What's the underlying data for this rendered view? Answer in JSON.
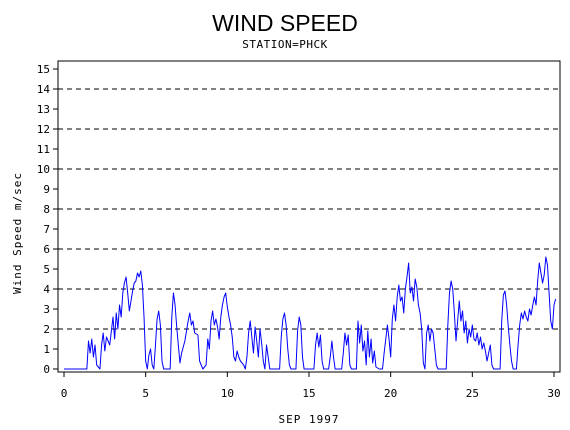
{
  "chart_data": {
    "type": "line",
    "title": "WIND SPEED",
    "subtitle": "STATION=PHCK",
    "xlabel": "SEP 1997",
    "ylabel": "Wind Speed m/sec",
    "xlim": [
      0,
      30
    ],
    "ylim": [
      0,
      15
    ],
    "x_ticks": [
      0,
      5,
      10,
      15,
      20,
      25,
      30
    ],
    "y_ticks": [
      0,
      1,
      2,
      3,
      4,
      5,
      6,
      7,
      8,
      9,
      10,
      11,
      12,
      13,
      14,
      15
    ],
    "reference_lines": [
      2,
      4,
      6,
      8,
      10,
      12,
      14
    ],
    "grid": "dashed horizontal reference lines",
    "series": [
      {
        "color": "#0000ff",
        "points": [
          [
            0.0,
            0.0
          ],
          [
            1.4,
            0.0
          ],
          [
            1.5,
            1.4
          ],
          [
            1.6,
            0.8
          ],
          [
            1.7,
            1.5
          ],
          [
            1.8,
            0.6
          ],
          [
            1.9,
            1.2
          ],
          [
            2.0,
            0.2
          ],
          [
            2.2,
            0.0
          ],
          [
            2.3,
            1.2
          ],
          [
            2.4,
            1.8
          ],
          [
            2.5,
            0.9
          ],
          [
            2.6,
            1.6
          ],
          [
            2.8,
            1.2
          ],
          [
            3.0,
            2.6
          ],
          [
            3.1,
            1.5
          ],
          [
            3.2,
            2.8
          ],
          [
            3.3,
            2.0
          ],
          [
            3.4,
            3.2
          ],
          [
            3.5,
            2.6
          ],
          [
            3.6,
            3.8
          ],
          [
            3.7,
            4.3
          ],
          [
            3.8,
            4.6
          ],
          [
            3.9,
            3.8
          ],
          [
            4.0,
            2.9
          ],
          [
            4.1,
            3.4
          ],
          [
            4.2,
            3.9
          ],
          [
            4.3,
            4.3
          ],
          [
            4.4,
            4.4
          ],
          [
            4.5,
            4.8
          ],
          [
            4.6,
            4.6
          ],
          [
            4.7,
            4.9
          ],
          [
            4.8,
            4.2
          ],
          [
            4.9,
            2.6
          ],
          [
            5.0,
            0.4
          ],
          [
            5.1,
            0.0
          ],
          [
            5.2,
            0.7
          ],
          [
            5.3,
            1.0
          ],
          [
            5.4,
            0.2
          ],
          [
            5.5,
            0.0
          ],
          [
            5.6,
            1.2
          ],
          [
            5.7,
            2.5
          ],
          [
            5.8,
            2.9
          ],
          [
            5.9,
            2.2
          ],
          [
            6.0,
            0.4
          ],
          [
            6.1,
            0.0
          ],
          [
            6.5,
            0.0
          ],
          [
            6.6,
            2.6
          ],
          [
            6.7,
            3.8
          ],
          [
            6.8,
            3.2
          ],
          [
            6.9,
            2.1
          ],
          [
            7.0,
            1.2
          ],
          [
            7.1,
            0.3
          ],
          [
            7.2,
            0.8
          ],
          [
            7.4,
            1.4
          ],
          [
            7.6,
            2.4
          ],
          [
            7.7,
            2.8
          ],
          [
            7.8,
            2.2
          ],
          [
            7.9,
            2.4
          ],
          [
            8.0,
            1.8
          ],
          [
            8.2,
            1.7
          ],
          [
            8.3,
            0.4
          ],
          [
            8.5,
            0.0
          ],
          [
            8.7,
            0.2
          ],
          [
            8.8,
            1.5
          ],
          [
            8.9,
            1.0
          ],
          [
            9.0,
            2.4
          ],
          [
            9.1,
            2.9
          ],
          [
            9.2,
            2.2
          ],
          [
            9.3,
            2.5
          ],
          [
            9.4,
            2.1
          ],
          [
            9.5,
            1.5
          ],
          [
            9.6,
            2.6
          ],
          [
            9.7,
            3.2
          ],
          [
            9.8,
            3.6
          ],
          [
            9.9,
            3.8
          ],
          [
            10.0,
            3.1
          ],
          [
            10.1,
            2.6
          ],
          [
            10.2,
            2.2
          ],
          [
            10.3,
            1.6
          ],
          [
            10.4,
            0.6
          ],
          [
            10.5,
            0.4
          ],
          [
            10.6,
            0.9
          ],
          [
            10.7,
            0.6
          ],
          [
            10.8,
            0.4
          ],
          [
            11.0,
            0.2
          ],
          [
            11.1,
            0.0
          ],
          [
            11.2,
            0.6
          ],
          [
            11.3,
            1.8
          ],
          [
            11.4,
            2.4
          ],
          [
            11.5,
            1.6
          ],
          [
            11.6,
            0.8
          ],
          [
            11.7,
            2.1
          ],
          [
            11.8,
            1.4
          ],
          [
            11.9,
            0.6
          ],
          [
            12.0,
            2.0
          ],
          [
            12.1,
            1.3
          ],
          [
            12.2,
            0.4
          ],
          [
            12.3,
            0.0
          ],
          [
            12.4,
            1.2
          ],
          [
            12.5,
            0.6
          ],
          [
            12.6,
            0.0
          ],
          [
            13.2,
            0.0
          ],
          [
            13.3,
            1.6
          ],
          [
            13.4,
            2.5
          ],
          [
            13.5,
            2.8
          ],
          [
            13.6,
            2.2
          ],
          [
            13.7,
            1.0
          ],
          [
            13.8,
            0.2
          ],
          [
            13.9,
            0.0
          ],
          [
            14.2,
            0.0
          ],
          [
            14.3,
            1.9
          ],
          [
            14.4,
            2.6
          ],
          [
            14.5,
            2.2
          ],
          [
            14.6,
            0.6
          ],
          [
            14.7,
            0.0
          ],
          [
            15.3,
            0.0
          ],
          [
            15.4,
            1.2
          ],
          [
            15.5,
            1.8
          ],
          [
            15.6,
            1.1
          ],
          [
            15.7,
            1.7
          ],
          [
            15.8,
            0.4
          ],
          [
            15.9,
            0.0
          ],
          [
            16.2,
            0.0
          ],
          [
            16.3,
            0.6
          ],
          [
            16.4,
            1.4
          ],
          [
            16.5,
            0.6
          ],
          [
            16.6,
            0.0
          ],
          [
            17.0,
            0.0
          ],
          [
            17.1,
            0.8
          ],
          [
            17.2,
            1.8
          ],
          [
            17.3,
            1.2
          ],
          [
            17.4,
            1.7
          ],
          [
            17.5,
            0.2
          ],
          [
            17.6,
            0.0
          ],
          [
            17.9,
            0.0
          ],
          [
            18.0,
            2.4
          ],
          [
            18.1,
            1.3
          ],
          [
            18.2,
            2.2
          ],
          [
            18.3,
            0.9
          ],
          [
            18.4,
            1.4
          ],
          [
            18.5,
            0.2
          ],
          [
            18.6,
            1.9
          ],
          [
            18.7,
            0.6
          ],
          [
            18.8,
            1.5
          ],
          [
            18.9,
            0.3
          ],
          [
            19.0,
            0.9
          ],
          [
            19.1,
            0.1
          ],
          [
            19.3,
            0.0
          ],
          [
            19.5,
            0.0
          ],
          [
            19.6,
            0.8
          ],
          [
            19.7,
            1.5
          ],
          [
            19.8,
            2.2
          ],
          [
            19.9,
            1.5
          ],
          [
            20.0,
            0.6
          ],
          [
            20.1,
            2.5
          ],
          [
            20.2,
            3.2
          ],
          [
            20.3,
            2.4
          ],
          [
            20.4,
            3.6
          ],
          [
            20.5,
            4.2
          ],
          [
            20.6,
            3.4
          ],
          [
            20.7,
            3.6
          ],
          [
            20.8,
            2.8
          ],
          [
            20.9,
            4.0
          ],
          [
            21.0,
            4.6
          ],
          [
            21.1,
            5.3
          ],
          [
            21.2,
            3.8
          ],
          [
            21.3,
            4.1
          ],
          [
            21.4,
            3.4
          ],
          [
            21.5,
            4.5
          ],
          [
            21.6,
            4.1
          ],
          [
            21.7,
            3.2
          ],
          [
            21.8,
            2.8
          ],
          [
            21.9,
            2.0
          ],
          [
            22.0,
            0.3
          ],
          [
            22.1,
            0.0
          ],
          [
            22.2,
            1.8
          ],
          [
            22.3,
            2.2
          ],
          [
            22.4,
            1.4
          ],
          [
            22.5,
            2.0
          ],
          [
            22.6,
            1.8
          ],
          [
            22.7,
            1.0
          ],
          [
            22.8,
            0.2
          ],
          [
            22.9,
            0.0
          ],
          [
            23.4,
            0.0
          ],
          [
            23.5,
            2.2
          ],
          [
            23.6,
            3.8
          ],
          [
            23.7,
            4.4
          ],
          [
            23.8,
            4.0
          ],
          [
            23.9,
            2.8
          ],
          [
            24.0,
            1.4
          ],
          [
            24.1,
            2.4
          ],
          [
            24.2,
            3.4
          ],
          [
            24.3,
            2.4
          ],
          [
            24.4,
            2.9
          ],
          [
            24.5,
            1.8
          ],
          [
            24.6,
            2.4
          ],
          [
            24.7,
            1.3
          ],
          [
            24.8,
            2.0
          ],
          [
            24.9,
            1.6
          ],
          [
            25.0,
            2.2
          ],
          [
            25.1,
            1.5
          ],
          [
            25.2,
            1.4
          ],
          [
            25.3,
            1.8
          ],
          [
            25.4,
            1.2
          ],
          [
            25.5,
            1.6
          ],
          [
            25.6,
            1.0
          ],
          [
            25.7,
            1.3
          ],
          [
            25.8,
            0.9
          ],
          [
            25.9,
            0.4
          ],
          [
            26.0,
            0.8
          ],
          [
            26.1,
            1.2
          ],
          [
            26.2,
            0.2
          ],
          [
            26.3,
            0.0
          ],
          [
            26.7,
            0.0
          ],
          [
            26.8,
            2.4
          ],
          [
            26.9,
            3.7
          ],
          [
            27.0,
            3.9
          ],
          [
            27.1,
            3.2
          ],
          [
            27.2,
            2.1
          ],
          [
            27.3,
            1.2
          ],
          [
            27.4,
            0.4
          ],
          [
            27.5,
            0.0
          ],
          [
            27.7,
            0.0
          ],
          [
            27.8,
            1.2
          ],
          [
            27.9,
            2.2
          ],
          [
            28.0,
            2.8
          ],
          [
            28.1,
            2.5
          ],
          [
            28.2,
            2.9
          ],
          [
            28.3,
            2.6
          ],
          [
            28.4,
            2.4
          ],
          [
            28.5,
            3.0
          ],
          [
            28.6,
            2.7
          ],
          [
            28.7,
            3.2
          ],
          [
            28.8,
            3.6
          ],
          [
            28.9,
            3.2
          ],
          [
            29.0,
            4.4
          ],
          [
            29.1,
            5.3
          ],
          [
            29.2,
            4.8
          ],
          [
            29.3,
            4.3
          ],
          [
            29.4,
            4.7
          ],
          [
            29.5,
            5.6
          ],
          [
            29.6,
            5.2
          ],
          [
            29.7,
            3.8
          ],
          [
            29.8,
            2.4
          ],
          [
            29.9,
            2.0
          ],
          [
            30.0,
            3.2
          ],
          [
            30.1,
            3.5
          ]
        ]
      }
    ]
  }
}
